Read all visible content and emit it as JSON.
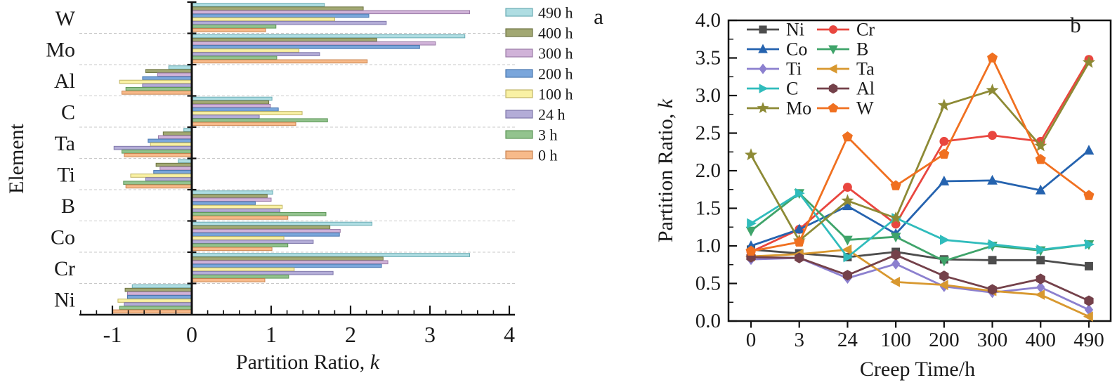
{
  "figure": {
    "background": "#ffffff",
    "panel_a": {
      "panel_label": "a",
      "ylabel": "Element",
      "xlabel_prefix": "Partition Ratio, ",
      "xlabel_italic": "k"
    },
    "panel_b": {
      "panel_label": "b",
      "ylabel_prefix": "Partition Ratio, ",
      "ylabel_italic": "k",
      "xlabel": "Creep Time/h"
    }
  },
  "chart_data": [
    {
      "type": "bar",
      "orientation": "horizontal",
      "title": "",
      "xlabel": "Partition Ratio, k",
      "ylabel": "Element",
      "xlim": [
        -1.4,
        4
      ],
      "x_ticks": [
        -1,
        0,
        1,
        2,
        3,
        4
      ],
      "x_tick_labels": [
        "-1",
        "0",
        "1",
        "2",
        "3",
        "4"
      ],
      "grid": "dashed-horizontal-between-groups",
      "legend_position": "top-right-outside",
      "categories": [
        "W",
        "Mo",
        "Al",
        "C",
        "Ta",
        "Ti",
        "B",
        "Co",
        "Cr",
        "Ni"
      ],
      "series": [
        {
          "name": "490 h",
          "fill": "#aedde2",
          "border": "#6aacb4",
          "values": [
            1.67,
            3.44,
            -0.29,
            1.01,
            -0.1,
            -0.17,
            1.02,
            2.27,
            3.5,
            -0.75
          ]
        },
        {
          "name": "400 h",
          "fill": "#a2a873",
          "border": "#6e7443",
          "values": [
            2.16,
            2.33,
            -0.58,
            0.97,
            -0.36,
            -0.45,
            0.95,
            1.74,
            2.41,
            -0.84
          ]
        },
        {
          "name": "300 h",
          "fill": "#d0b2d8",
          "border": "#9c7ca8",
          "values": [
            3.5,
            3.07,
            -0.43,
            0.99,
            -0.42,
            -0.4,
            1.0,
            1.87,
            2.47,
            -0.81
          ]
        },
        {
          "name": "200 h",
          "fill": "#7aa6db",
          "border": "#4a77af",
          "values": [
            2.23,
            2.87,
            -0.62,
            1.09,
            -0.55,
            -0.48,
            0.8,
            1.86,
            2.39,
            -0.81
          ]
        },
        {
          "name": "100 h",
          "fill": "#f9f1a4",
          "border": "#c0b464",
          "values": [
            1.8,
            1.35,
            -0.91,
            1.39,
            -0.52,
            -0.77,
            1.14,
            1.16,
            1.29,
            -0.93
          ]
        },
        {
          "name": "24 h",
          "fill": "#b3acd7",
          "border": "#7f77ab",
          "values": [
            2.45,
            1.61,
            -0.62,
            0.85,
            -0.98,
            -0.58,
            1.11,
            1.53,
            1.78,
            -0.85
          ]
        },
        {
          "name": "3 h",
          "fill": "#93c38e",
          "border": "#5d9758",
          "values": [
            1.06,
            1.07,
            -0.83,
            1.71,
            -0.88,
            -0.86,
            1.69,
            1.21,
            1.22,
            -0.91
          ]
        },
        {
          "name": "0 h",
          "fill": "#f7ba8a",
          "border": "#c98350",
          "values": [
            0.93,
            2.21,
            -0.88,
            1.31,
            -0.85,
            -0.83,
            1.21,
            1.01,
            0.92,
            -1.0
          ]
        }
      ],
      "panel_label": "a"
    },
    {
      "type": "line",
      "title": "",
      "xlabel": "Creep Time/h",
      "ylabel": "Partition Ratio, k",
      "ylim": [
        0,
        4
      ],
      "y_ticks": [
        0.0,
        0.5,
        1.0,
        1.5,
        2.0,
        2.5,
        3.0,
        3.5,
        4.0
      ],
      "y_tick_labels": [
        "0.0",
        "0.5",
        "1.0",
        "1.5",
        "2.0",
        "2.5",
        "3.0",
        "3.5",
        "4.0"
      ],
      "x_categories": [
        "0",
        "3",
        "24",
        "100",
        "200",
        "300",
        "400",
        "490"
      ],
      "grid": "off",
      "legend_position": "top-left-inside",
      "legend_rows": [
        [
          "Ni",
          "Cr"
        ],
        [
          "Co",
          "B"
        ],
        [
          "Ti",
          "Ta"
        ],
        [
          "C",
          "Al"
        ],
        [
          "Mo",
          "W"
        ]
      ],
      "series": [
        {
          "name": "Ni",
          "color": "#4d4d4d",
          "marker": "square",
          "values": [
            0.95,
            0.9,
            0.85,
            0.92,
            0.82,
            0.81,
            0.81,
            0.73
          ]
        },
        {
          "name": "Cr",
          "color": "#e9463f",
          "marker": "circle",
          "values": [
            0.92,
            1.22,
            1.78,
            1.29,
            2.39,
            2.47,
            2.39,
            3.48
          ]
        },
        {
          "name": "Co",
          "color": "#2563af",
          "marker": "triangle-up",
          "values": [
            1.0,
            1.22,
            1.53,
            1.16,
            1.86,
            1.87,
            1.74,
            2.27
          ]
        },
        {
          "name": "B",
          "color": "#3fa46a",
          "marker": "triangle-down",
          "values": [
            1.2,
            1.7,
            1.08,
            1.12,
            0.8,
            1.0,
            0.94,
            1.02
          ]
        },
        {
          "name": "Ti",
          "color": "#8c80cf",
          "marker": "diamond",
          "values": [
            0.82,
            0.84,
            0.57,
            0.76,
            0.46,
            0.38,
            0.45,
            0.15
          ]
        },
        {
          "name": "Ta",
          "color": "#d8982f",
          "marker": "triangle-left",
          "values": [
            0.86,
            0.89,
            0.95,
            0.52,
            0.48,
            0.4,
            0.35,
            0.06
          ]
        },
        {
          "name": "C",
          "color": "#30bcbc",
          "marker": "triangle-right",
          "values": [
            1.3,
            1.7,
            0.85,
            1.37,
            1.08,
            1.02,
            0.95,
            1.02
          ]
        },
        {
          "name": "Al",
          "color": "#74414a",
          "marker": "hexagon",
          "values": [
            0.85,
            0.84,
            0.61,
            0.88,
            0.6,
            0.42,
            0.56,
            0.27
          ]
        },
        {
          "name": "Mo",
          "color": "#8d8a35",
          "marker": "star",
          "values": [
            2.21,
            1.07,
            1.6,
            1.37,
            2.87,
            3.07,
            2.33,
            3.44
          ]
        },
        {
          "name": "W",
          "color": "#f07020",
          "marker": "pentagon",
          "values": [
            0.93,
            1.05,
            2.45,
            1.8,
            2.22,
            3.5,
            2.15,
            1.67
          ]
        }
      ],
      "panel_label": "b"
    }
  ]
}
